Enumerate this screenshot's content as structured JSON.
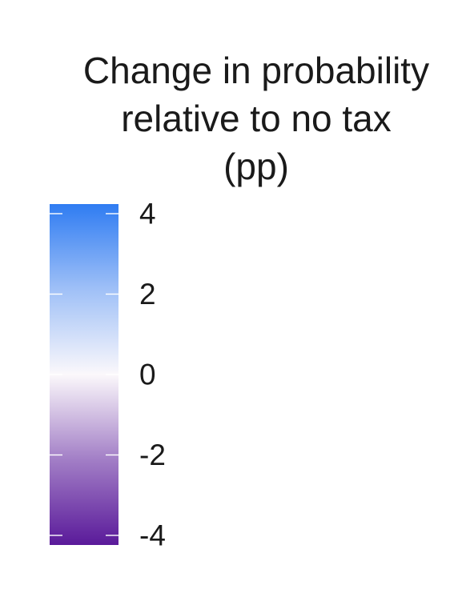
{
  "chart_data": {
    "type": "colorbar",
    "title_lines": [
      "Change in probability",
      "relative to no tax",
      "(pp)"
    ],
    "range": [
      -4,
      4
    ],
    "ticks": [
      4,
      2,
      0,
      -2,
      -4
    ],
    "tick_labels": [
      "4",
      "2",
      "0",
      "-2",
      "-4"
    ],
    "colors": {
      "high": "#2f7cf2",
      "mid": "#fbf8fb",
      "low": "#5a1a9a"
    },
    "tick_color": "#ffffff"
  }
}
